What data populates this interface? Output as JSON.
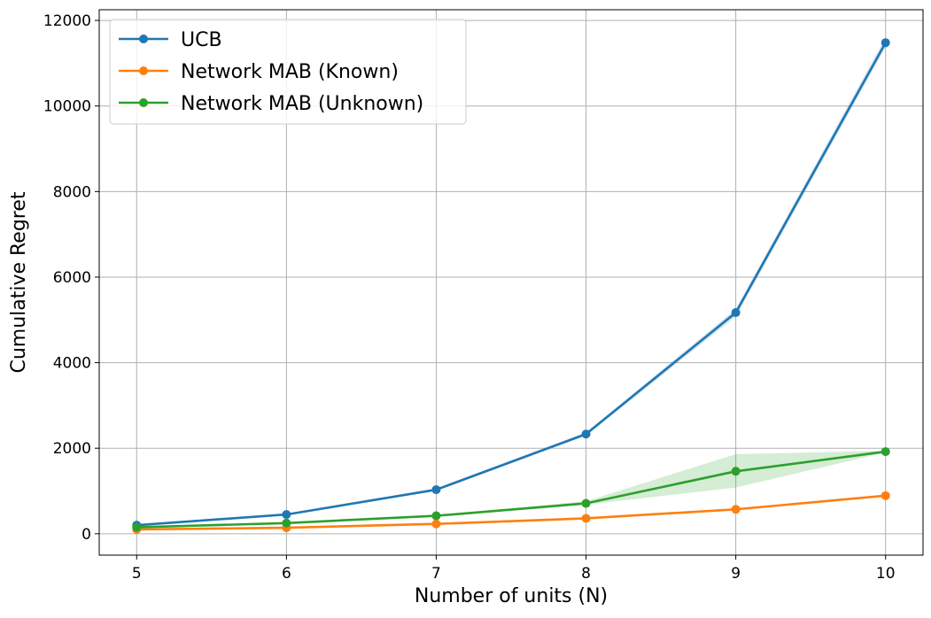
{
  "chart_data": {
    "type": "line",
    "title": "",
    "xlabel": "Number of units (N)",
    "ylabel": "Cumulative Regret",
    "x": [
      5,
      6,
      7,
      8,
      9,
      10
    ],
    "xlim": [
      4.75,
      10.25
    ],
    "ylim": [
      -500,
      12250
    ],
    "xticks": [
      5,
      6,
      7,
      8,
      9,
      10
    ],
    "yticks": [
      0,
      2000,
      4000,
      6000,
      8000,
      10000,
      12000
    ],
    "grid": true,
    "legend_position": "top-left",
    "series": [
      {
        "name": "UCB",
        "color": "#1f77b4",
        "values": [
          200,
          450,
          1030,
          2330,
          5170,
          11480
        ],
        "band_low": [
          190,
          430,
          1000,
          2290,
          5080,
          11380
        ],
        "band_high": [
          210,
          470,
          1060,
          2370,
          5250,
          11600
        ]
      },
      {
        "name": "Network MAB (Known)",
        "color": "#ff7f0e",
        "values": [
          100,
          140,
          230,
          360,
          570,
          890
        ],
        "band_low": [
          95,
          133,
          220,
          345,
          555,
          870
        ],
        "band_high": [
          105,
          147,
          240,
          375,
          585,
          910
        ]
      },
      {
        "name": "Network MAB (Unknown)",
        "color": "#2ca02c",
        "values": [
          150,
          250,
          420,
          710,
          1460,
          1920
        ],
        "band_low": [
          140,
          235,
          400,
          680,
          1080,
          1900
        ],
        "band_high": [
          160,
          265,
          440,
          760,
          1860,
          1940
        ]
      }
    ]
  }
}
